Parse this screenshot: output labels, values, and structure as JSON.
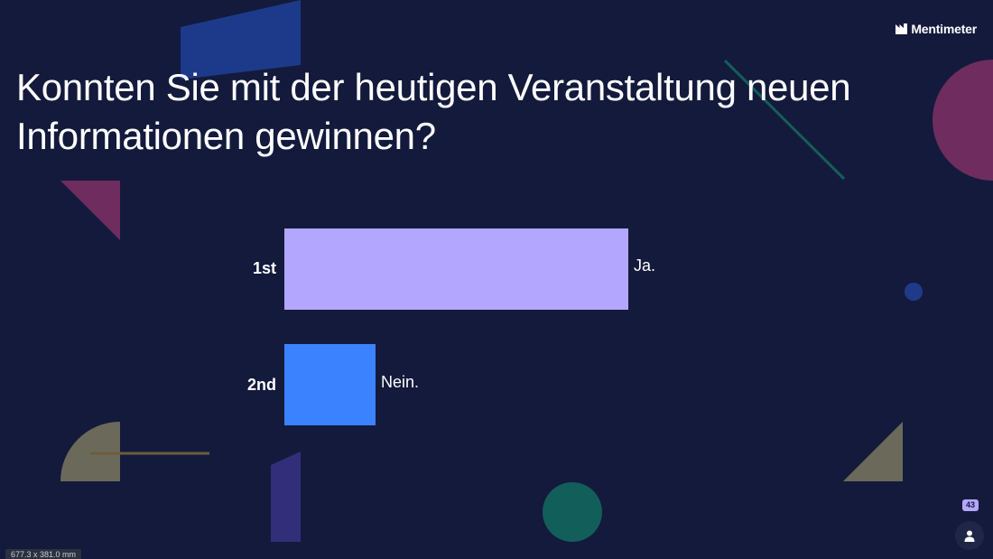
{
  "brand": {
    "name": "Mentimeter",
    "icon": "mentimeter-logo-icon"
  },
  "slide": {
    "question": "Konnten Sie mit der heutigen Veranstaltung neuen Informationen gewinnen?"
  },
  "results": [
    {
      "rank": "1st",
      "label": "Ja.",
      "share": 1.0,
      "color": "#b3a6ff"
    },
    {
      "rank": "2nd",
      "label": "Nein.",
      "share": 0.265,
      "color": "#3b82ff"
    }
  ],
  "participants": {
    "count": "43",
    "icon": "person-icon"
  },
  "status": {
    "dimensions": "677.3 x 381.0 mm"
  },
  "decor_colors": {
    "blue": "#1d3a8a",
    "magenta": "#6e2d5e",
    "teal": "#125e5b",
    "olive": "#6b6a5a",
    "purple": "#332e7a",
    "navy_dot": "#203a8a"
  }
}
